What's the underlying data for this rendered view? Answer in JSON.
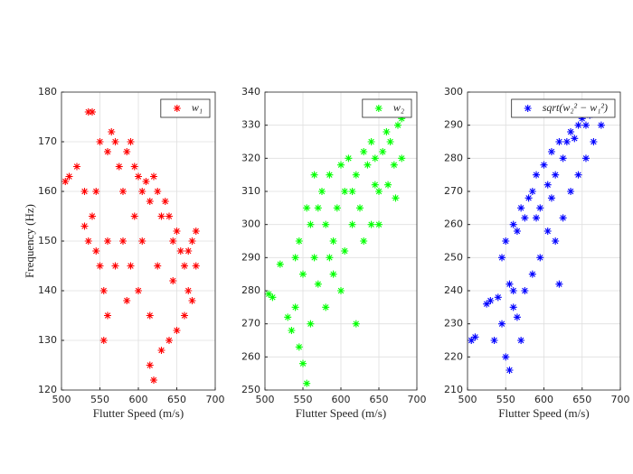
{
  "chart_data": [
    {
      "type": "scatter",
      "xlabel": "Flutter Speed (m/s)",
      "ylabel": "Frequency (Hz)",
      "xlim": [
        500,
        700
      ],
      "xticks": [
        500,
        550,
        600,
        650,
        700
      ],
      "ylim": [
        120,
        180
      ],
      "yticks": [
        120,
        130,
        140,
        150,
        160,
        170,
        180
      ],
      "grid": true,
      "legend": "upper right",
      "series": [
        {
          "name": "w₁",
          "color": "#ff0000",
          "x": [
            505,
            510,
            520,
            530,
            535,
            540,
            530,
            535,
            540,
            545,
            550,
            555,
            560,
            560,
            565,
            570,
            575,
            580,
            585,
            590,
            595,
            600,
            605,
            610,
            615,
            620,
            625,
            630,
            635,
            640,
            645,
            650,
            655,
            660,
            665,
            670,
            675,
            675,
            670,
            660,
            650,
            640,
            630,
            620,
            615,
            600,
            590,
            580,
            570,
            560,
            555,
            545,
            550,
            595,
            605,
            625,
            645,
            665,
            615,
            585
          ],
          "values": [
            162,
            163,
            165,
            160,
            176,
            176,
            153,
            150,
            155,
            148,
            145,
            130,
            135,
            168,
            172,
            170,
            165,
            160,
            168,
            170,
            165,
            163,
            160,
            162,
            158,
            163,
            160,
            155,
            158,
            155,
            150,
            152,
            148,
            145,
            140,
            150,
            152,
            145,
            138,
            135,
            132,
            130,
            128,
            122,
            125,
            140,
            145,
            150,
            145,
            150,
            140,
            160,
            170,
            155,
            150,
            145,
            142,
            148,
            135,
            138
          ]
        }
      ]
    },
    {
      "type": "scatter",
      "xlabel": "Flutter Speed (m/s)",
      "xlim": [
        500,
        700
      ],
      "xticks": [
        500,
        550,
        600,
        650,
        700
      ],
      "ylim": [
        250,
        340
      ],
      "yticks": [
        250,
        260,
        270,
        280,
        290,
        300,
        310,
        320,
        330,
        340
      ],
      "grid": true,
      "legend": "upper left",
      "series": [
        {
          "name": "w₂",
          "color": "#00ff00",
          "x": [
            505,
            510,
            520,
            530,
            535,
            540,
            545,
            550,
            555,
            550,
            545,
            560,
            565,
            570,
            575,
            580,
            585,
            590,
            595,
            600,
            605,
            610,
            615,
            620,
            620,
            625,
            630,
            635,
            640,
            645,
            650,
            655,
            660,
            665,
            670,
            675,
            680,
            680,
            672,
            662,
            650,
            640,
            630,
            600,
            590,
            580,
            570,
            560,
            540,
            555,
            565,
            585,
            605,
            615,
            645
          ],
          "values": [
            279,
            278,
            288,
            272,
            268,
            275,
            263,
            258,
            252,
            285,
            295,
            300,
            290,
            305,
            310,
            300,
            315,
            295,
            305,
            318,
            310,
            320,
            300,
            270,
            315,
            305,
            322,
            318,
            325,
            320,
            310,
            322,
            328,
            325,
            318,
            330,
            332,
            320,
            308,
            312,
            300,
            300,
            295,
            280,
            285,
            275,
            282,
            270,
            290,
            305,
            315,
            290,
            292,
            310,
            312
          ]
        }
      ]
    },
    {
      "type": "scatter",
      "xlabel": "Flutter Speed (m/s)",
      "xlim": [
        500,
        700
      ],
      "xticks": [
        500,
        550,
        600,
        650,
        700
      ],
      "ylim": [
        210,
        300
      ],
      "yticks": [
        210,
        220,
        230,
        240,
        250,
        260,
        270,
        280,
        290,
        300
      ],
      "grid": true,
      "legend": "upper left",
      "series": [
        {
          "name": "sqrt(w₂² − w₁²)",
          "color": "#0000ff",
          "x": [
            505,
            510,
            525,
            530,
            535,
            540,
            545,
            550,
            555,
            555,
            560,
            545,
            550,
            560,
            565,
            570,
            575,
            580,
            585,
            590,
            595,
            600,
            605,
            610,
            615,
            620,
            625,
            630,
            635,
            640,
            645,
            650,
            655,
            660,
            665,
            670,
            675,
            680,
            675,
            665,
            655,
            645,
            635,
            625,
            615,
            620,
            605,
            595,
            585,
            575,
            565,
            570,
            560,
            590,
            610
          ],
          "values": [
            225,
            226,
            236,
            237,
            225,
            238,
            230,
            220,
            216,
            242,
            235,
            250,
            255,
            260,
            258,
            265,
            262,
            268,
            270,
            275,
            265,
            278,
            272,
            282,
            275,
            285,
            280,
            285,
            288,
            286,
            290,
            292,
            290,
            293,
            294,
            295,
            296,
            296,
            290,
            285,
            280,
            275,
            270,
            262,
            255,
            242,
            258,
            250,
            245,
            240,
            232,
            225,
            240,
            262,
            268
          ]
        }
      ]
    }
  ]
}
